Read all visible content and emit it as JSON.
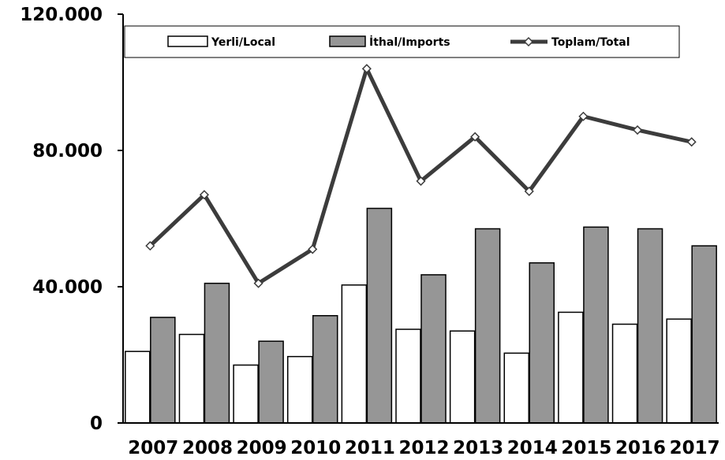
{
  "chart_data": {
    "type": "bar",
    "categories": [
      "2007",
      "2008",
      "2009",
      "2010",
      "2011",
      "2012",
      "2013",
      "2014",
      "2015",
      "2016",
      "2017"
    ],
    "series": [
      {
        "name": "Yerli/Local",
        "kind": "bar",
        "color": "#ffffff",
        "values": [
          21000,
          26000,
          17000,
          19500,
          40500,
          27500,
          27000,
          20500,
          32500,
          29000,
          30500
        ]
      },
      {
        "name": "İthal/Imports",
        "kind": "bar",
        "color": "#969696",
        "values": [
          31000,
          41000,
          24000,
          31500,
          63000,
          43500,
          57000,
          47000,
          57500,
          57000,
          52000
        ]
      },
      {
        "name": "Toplam/Total",
        "kind": "line",
        "color": "#3c3c3c",
        "values": [
          52000,
          67000,
          41000,
          51000,
          104000,
          71000,
          84000,
          68000,
          90000,
          86000,
          82500
        ]
      }
    ],
    "ylim": [
      0,
      120000
    ],
    "yticks": [
      {
        "value": 0,
        "label": "0"
      },
      {
        "value": 40000,
        "label": "40.000"
      },
      {
        "value": 80000,
        "label": "80.000"
      },
      {
        "value": 120000,
        "label": "120.000"
      }
    ],
    "grid": false,
    "legend_position": "top"
  }
}
